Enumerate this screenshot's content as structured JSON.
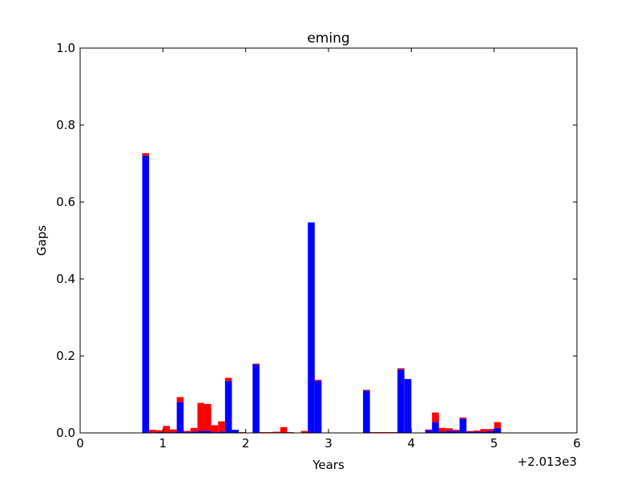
{
  "chart_data": {
    "type": "bar",
    "stacked": true,
    "title": "eming",
    "xlabel": "Years",
    "ylabel": "Gaps",
    "offset_label": "+2.013e3",
    "xlim": [
      0,
      6
    ],
    "ylim": [
      0,
      1.0
    ],
    "x_ticks": [
      0,
      1,
      2,
      3,
      4,
      5,
      6
    ],
    "x_tick_labels": [
      "0",
      "1",
      "2",
      "3",
      "4",
      "5",
      "6"
    ],
    "y_ticks": [
      0,
      0.2,
      0.4,
      0.6,
      0.8,
      1.0
    ],
    "y_tick_labels": [
      "0.0",
      "0.2",
      "0.4",
      "0.6",
      "0.8",
      "1.0"
    ],
    "grid": false,
    "bar_width": 0.0833,
    "x": [
      0.75,
      0.833,
      0.917,
      1.0,
      1.083,
      1.167,
      1.25,
      1.333,
      1.417,
      1.5,
      1.583,
      1.667,
      1.75,
      1.833,
      1.917,
      2.083,
      2.167,
      2.25,
      2.333,
      2.417,
      2.5,
      2.667,
      2.75,
      2.833,
      3.417,
      3.5,
      3.583,
      3.667,
      3.75,
      3.833,
      3.917,
      4.167,
      4.25,
      4.333,
      4.417,
      4.5,
      4.583,
      4.667,
      4.75,
      4.833,
      4.917,
      5.0
    ],
    "series": [
      {
        "color": "#0000ff",
        "values": [
          0.72,
          0.0,
          0.002,
          0.0,
          0.002,
          0.08,
          0.002,
          0.003,
          0.005,
          0.005,
          0.002,
          0.003,
          0.135,
          0.008,
          0.0,
          0.178,
          0.0,
          0.0,
          0.0,
          0.0,
          0.0,
          0.0,
          0.547,
          0.135,
          0.11,
          0.0,
          0.0,
          0.0,
          0.0,
          0.165,
          0.14,
          0.007,
          0.028,
          0.003,
          0.005,
          0.005,
          0.037,
          0.003,
          0.003,
          0.003,
          0.005,
          0.013
        ]
      },
      {
        "color": "#ff0000",
        "values": [
          0.007,
          0.008,
          0.005,
          0.018,
          0.007,
          0.013,
          0.003,
          0.01,
          0.073,
          0.07,
          0.018,
          0.027,
          0.008,
          0.0,
          0.002,
          0.002,
          0.002,
          0.002,
          0.003,
          0.015,
          0.002,
          0.005,
          0.0,
          0.003,
          0.002,
          0.002,
          0.002,
          0.002,
          0.002,
          0.003,
          0.0,
          0.002,
          0.025,
          0.01,
          0.007,
          0.003,
          0.003,
          0.002,
          0.003,
          0.007,
          0.005,
          0.015
        ]
      }
    ]
  }
}
